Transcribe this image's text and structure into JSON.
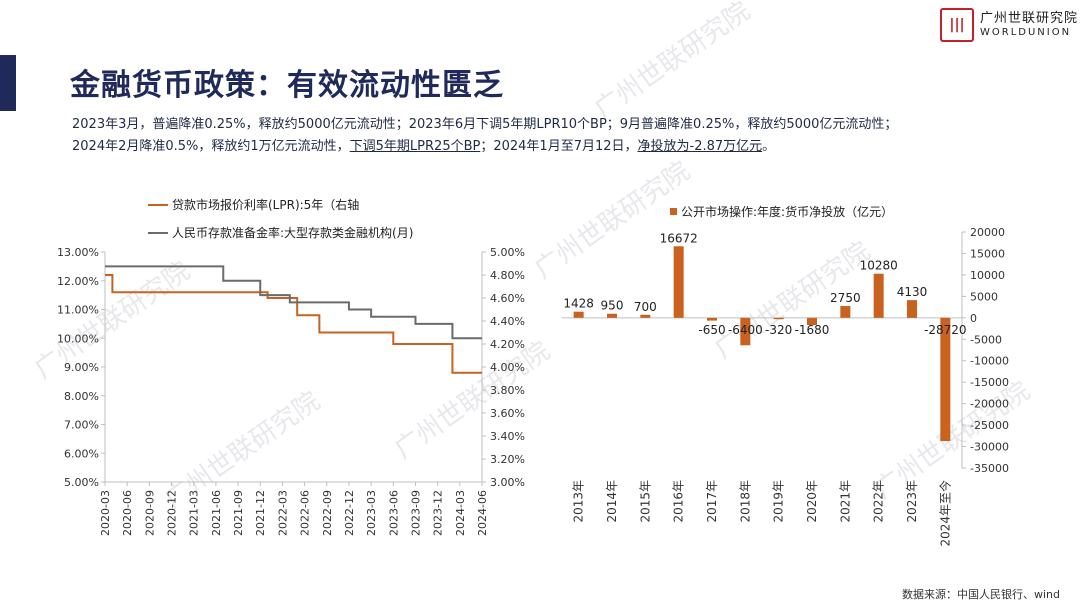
{
  "header": {
    "title": "金融货币政策：有效流动性匮乏",
    "logo_cn": "广州世联研究院",
    "logo_en": "WORLDUNION"
  },
  "description": {
    "line1": "2023年3月，普遍降准0.25%，释放约5000亿元流动性；2023年6月下调5年期LPR10个BP；9月普遍降准0.25%，释放约5000亿元流动性；",
    "line2_a": "2024年2月降准0.5%，释放约1万亿元流动性，",
    "line2_u1": "下调5年期LPR25个BP",
    "line2_b": "；2024年1月至7月12日，",
    "line2_u2": "净投放为-2.87万亿元",
    "line2_c": "。"
  },
  "watermark": "广州世联研究院",
  "source": "数据来源：中国人民银行、wind",
  "colors": {
    "navy": "#1f2a5a",
    "orange": "#c8621e",
    "gray": "#6b6b6b",
    "brand_red": "#c0202a"
  },
  "chart_data": [
    {
      "type": "line",
      "series": [
        {
          "name": "贷款市场报价利率(LPR):5年（右轴",
          "axis": "right",
          "color": "#c8621e",
          "points": [
            [
              "2020-03",
              4.8
            ],
            [
              "2020-04",
              4.65
            ],
            [
              "2022-01",
              4.6
            ],
            [
              "2022-05",
              4.45
            ],
            [
              "2022-08",
              4.3
            ],
            [
              "2023-06",
              4.2
            ],
            [
              "2024-02",
              3.95
            ],
            [
              "2024-06",
              3.95
            ]
          ]
        },
        {
          "name": "人民币存款准备金率:大型存款类金融机构(月)",
          "axis": "left",
          "color": "#6b6b6b",
          "points": [
            [
              "2020-03",
              12.5
            ],
            [
              "2021-07",
              12.0
            ],
            [
              "2021-12",
              11.5
            ],
            [
              "2022-04",
              11.25
            ],
            [
              "2022-12",
              11.0
            ],
            [
              "2023-03",
              10.75
            ],
            [
              "2023-09",
              10.5
            ],
            [
              "2024-02",
              10.0
            ],
            [
              "2024-06",
              10.0
            ]
          ]
        }
      ],
      "left_axis": {
        "ticks": [
          "13.00%",
          "12.00%",
          "11.00%",
          "10.00%",
          "9.00%",
          "8.00%",
          "7.00%",
          "6.00%",
          "5.00%"
        ],
        "ylim": [
          5,
          13
        ]
      },
      "right_axis": {
        "ticks": [
          "5.00%",
          "4.80%",
          "4.60%",
          "4.40%",
          "4.20%",
          "4.00%",
          "3.80%",
          "3.60%",
          "3.40%",
          "3.20%",
          "3.00%"
        ],
        "ylim": [
          3,
          5
        ]
      },
      "x_ticks": [
        "2020-03",
        "2020-06",
        "2020-09",
        "2020-12",
        "2021-03",
        "2021-06",
        "2021-09",
        "2021-12",
        "2022-03",
        "2022-06",
        "2022-09",
        "2022-12",
        "2023-03",
        "2023-06",
        "2023-09",
        "2023-12",
        "2024-03",
        "2024-06"
      ],
      "xlim": [
        "2020-03",
        "2024-06"
      ],
      "legend_position": "top-left"
    },
    {
      "type": "bar",
      "series": [
        {
          "name": "公开市场操作:年度:货币净投放（亿元）",
          "color": "#c8621e"
        }
      ],
      "categories": [
        "2013年",
        "2014年",
        "2015年",
        "2016年",
        "2017年",
        "2018年",
        "2019年",
        "2020年",
        "2021年",
        "2022年",
        "2023年",
        "2024年至今"
      ],
      "values": [
        1428,
        950,
        700,
        16672,
        -650,
        -6400,
        -320,
        -1680,
        2750,
        10280,
        4130,
        -28720
      ],
      "labels": [
        "1428",
        "950",
        "700",
        "16672",
        "-650",
        "-6400",
        "-320",
        "-1680",
        "2750",
        "10280",
        "4130",
        "-28720"
      ],
      "y_ticks": [
        "20000",
        "15000",
        "10000",
        "5000",
        "0",
        "-5000",
        "-10000",
        "-15000",
        "-20000",
        "-25000",
        "-30000",
        "-35000"
      ],
      "ylim": [
        -35000,
        20000
      ],
      "axis": "right",
      "legend_position": "top"
    }
  ]
}
